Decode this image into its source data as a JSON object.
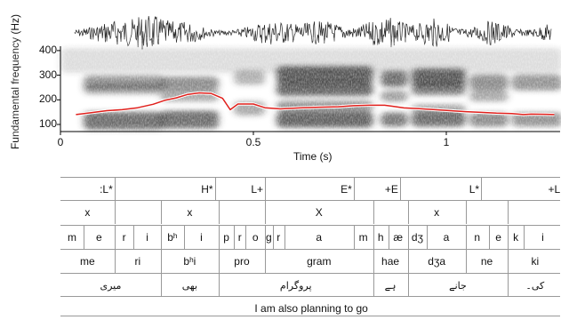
{
  "axes": {
    "ylabel": "Fundamental frequency (Hz)",
    "yticks": [
      {
        "label": "400",
        "value": 400
      },
      {
        "label": "300",
        "value": 300
      },
      {
        "label": "200",
        "value": 200
      },
      {
        "label": "100",
        "value": 100
      }
    ],
    "xticks": [
      {
        "label": "0",
        "value": 0
      },
      {
        "label": "0.5",
        "value": 0.5
      },
      {
        "label": "1",
        "value": 1
      }
    ],
    "xlabel": "Time (s)"
  },
  "colors": {
    "pitch": "#e0201c",
    "spectrogram": "#3a3a3a",
    "waveform": "#222222",
    "rule": "#999999"
  },
  "pitch_track_hz": [
    [
      0.04,
      140
    ],
    [
      0.08,
      148
    ],
    [
      0.12,
      156
    ],
    [
      0.16,
      160
    ],
    [
      0.2,
      168
    ],
    [
      0.24,
      182
    ],
    [
      0.27,
      198
    ],
    [
      0.3,
      208
    ],
    [
      0.33,
      222
    ],
    [
      0.36,
      228
    ],
    [
      0.39,
      226
    ],
    [
      0.42,
      206
    ],
    [
      0.44,
      160
    ],
    [
      0.46,
      183
    ],
    [
      0.5,
      183
    ],
    [
      0.53,
      168
    ],
    [
      0.57,
      163
    ],
    [
      0.62,
      167
    ],
    [
      0.67,
      170
    ],
    [
      0.72,
      172
    ],
    [
      0.76,
      176
    ],
    [
      0.8,
      178
    ],
    [
      0.84,
      178
    ],
    [
      0.86,
      174
    ],
    [
      0.89,
      167
    ],
    [
      0.93,
      164
    ],
    [
      0.97,
      160
    ],
    [
      1.01,
      156
    ],
    [
      1.05,
      152
    ],
    [
      1.09,
      149
    ],
    [
      1.13,
      146
    ],
    [
      1.17,
      144
    ],
    [
      1.2,
      140
    ],
    [
      1.22,
      142
    ],
    [
      1.26,
      141
    ],
    [
      1.28,
      140
    ]
  ],
  "tiers": [
    {
      "name": "tones",
      "cells": [
        {
          "text": ":L*",
          "end": 0.14
        },
        {
          "text": "H*",
          "end": 0.4
        },
        {
          "text": "L+",
          "end": 0.53
        },
        {
          "text": "E*",
          "end": 0.76
        },
        {
          "text": "+E",
          "end": 0.88
        },
        {
          "text": "L*",
          "end": 1.09
        },
        {
          "text": "+L",
          "end": 1.3
        }
      ]
    },
    {
      "name": "stress",
      "cells": [
        {
          "text": "x",
          "start": 0.0,
          "end": 0.14
        },
        {
          "text": "",
          "start": 0.14,
          "end": 0.26
        },
        {
          "text": "x",
          "start": 0.26,
          "end": 0.41
        },
        {
          "text": "",
          "start": 0.41,
          "end": 0.53
        },
        {
          "text": "X",
          "start": 0.53,
          "end": 0.81
        },
        {
          "text": "",
          "start": 0.81,
          "end": 0.9
        },
        {
          "text": "x",
          "start": 0.9,
          "end": 1.05
        },
        {
          "text": "",
          "start": 1.05,
          "end": 1.16
        },
        {
          "text": "",
          "start": 1.16,
          "end": 1.3
        }
      ]
    },
    {
      "name": "phones",
      "cells": [
        {
          "text": "m",
          "start": 0.0,
          "end": 0.06
        },
        {
          "text": "e",
          "start": 0.06,
          "end": 0.14
        },
        {
          "text": "r",
          "start": 0.14,
          "end": 0.19
        },
        {
          "text": "i",
          "start": 0.19,
          "end": 0.26
        },
        {
          "text": "bʰ",
          "start": 0.26,
          "end": 0.32
        },
        {
          "text": "i",
          "start": 0.32,
          "end": 0.41
        },
        {
          "text": "p",
          "start": 0.41,
          "end": 0.45
        },
        {
          "text": "r",
          "start": 0.45,
          "end": 0.48
        },
        {
          "text": "o",
          "start": 0.48,
          "end": 0.53
        },
        {
          "text": "g",
          "start": 0.53,
          "end": 0.55
        },
        {
          "text": "r",
          "start": 0.55,
          "end": 0.58
        },
        {
          "text": "a",
          "start": 0.58,
          "end": 0.76
        },
        {
          "text": "m",
          "start": 0.76,
          "end": 0.81
        },
        {
          "text": "h",
          "start": 0.81,
          "end": 0.85
        },
        {
          "text": "æ",
          "start": 0.85,
          "end": 0.9
        },
        {
          "text": "dʒ",
          "start": 0.9,
          "end": 0.95
        },
        {
          "text": "a",
          "start": 0.95,
          "end": 1.05
        },
        {
          "text": "n",
          "start": 1.05,
          "end": 1.11
        },
        {
          "text": "e",
          "start": 1.11,
          "end": 1.16
        },
        {
          "text": "k",
          "start": 1.16,
          "end": 1.2
        },
        {
          "text": "i",
          "start": 1.2,
          "end": 1.3
        }
      ]
    },
    {
      "name": "syllables",
      "cells": [
        {
          "text": "me",
          "start": 0.0,
          "end": 0.14
        },
        {
          "text": "ri",
          "start": 0.14,
          "end": 0.26
        },
        {
          "text": "bʰi",
          "start": 0.26,
          "end": 0.41
        },
        {
          "text": "pro",
          "start": 0.41,
          "end": 0.53
        },
        {
          "text": "gram",
          "start": 0.53,
          "end": 0.81
        },
        {
          "text": "hae",
          "start": 0.81,
          "end": 0.9
        },
        {
          "text": "dʒa",
          "start": 0.9,
          "end": 1.05
        },
        {
          "text": "ne",
          "start": 1.05,
          "end": 1.16
        },
        {
          "text": "ki",
          "start": 1.16,
          "end": 1.3
        }
      ]
    },
    {
      "name": "urdu",
      "cells": [
        {
          "text": "میری",
          "start": 0.0,
          "end": 0.26
        },
        {
          "text": "بھی",
          "start": 0.26,
          "end": 0.41
        },
        {
          "text": "پروگرام",
          "start": 0.41,
          "end": 0.81
        },
        {
          "text": "ہے",
          "start": 0.81,
          "end": 0.9
        },
        {
          "text": "جانے",
          "start": 0.9,
          "end": 1.16
        },
        {
          "text": "کی۔",
          "start": 1.16,
          "end": 1.3
        }
      ]
    },
    {
      "name": "translation",
      "cells": [
        {
          "text": "I am also planning to go",
          "start": 0.0,
          "end": 1.3
        }
      ]
    }
  ]
}
